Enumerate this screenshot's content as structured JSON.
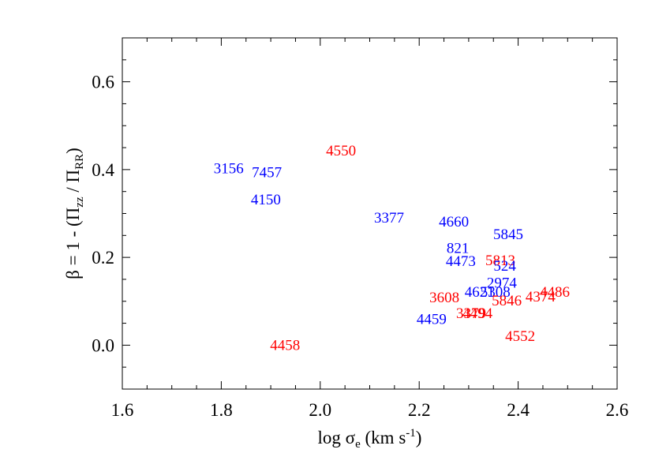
{
  "chart_data": {
    "type": "scatter",
    "xlabel": [
      "log σ",
      "e",
      " (km s",
      "-1",
      ")"
    ],
    "ylabel": [
      "β = 1 - (Π",
      "zz",
      " / Π",
      "RR",
      ")"
    ],
    "labels": [
      "3156",
      "7457",
      "4150",
      "4550",
      "3377",
      "4660",
      "5845",
      "821",
      "4473",
      "5813",
      "524",
      "2974",
      "4621",
      "5308",
      "3608",
      "4486",
      "4374",
      "5846",
      "3379",
      "4494",
      "4459",
      "4552",
      "4458"
    ],
    "x": [
      1.815,
      1.892,
      1.89,
      2.042,
      2.139,
      2.27,
      2.38,
      2.278,
      2.284,
      2.364,
      2.373,
      2.367,
      2.322,
      2.354,
      2.251,
      2.474,
      2.445,
      2.377,
      2.305,
      2.318,
      2.225,
      2.404,
      1.929
    ],
    "y": [
      0.404,
      0.395,
      0.333,
      0.445,
      0.292,
      0.283,
      0.254,
      0.223,
      0.193,
      0.195,
      0.182,
      0.144,
      0.123,
      0.123,
      0.11,
      0.123,
      0.112,
      0.103,
      0.074,
      0.074,
      0.061,
      0.022,
      0.002
    ],
    "colors": [
      "#0000ff",
      "#0000ff",
      "#0000ff",
      "#ff0000",
      "#0000ff",
      "#0000ff",
      "#0000ff",
      "#0000ff",
      "#0000ff",
      "#ff0000",
      "#0000ff",
      "#0000ff",
      "#0000ff",
      "#0000ff",
      "#ff0000",
      "#ff0000",
      "#ff0000",
      "#ff0000",
      "#ff0000",
      "#ff0000",
      "#0000ff",
      "#ff0000",
      "#ff0000"
    ],
    "xlim": [
      1.6,
      2.6
    ],
    "ylim": [
      -0.1,
      0.7
    ],
    "xticks": [
      1.6,
      1.8,
      {
        "value": 2,
        "label": "2.0"
      },
      2.2,
      2.4,
      2.6
    ],
    "yticks": [
      {
        "value": 0,
        "label": "0.0"
      },
      0.2,
      0.4,
      0.6
    ],
    "xminorticks": [
      1.65,
      1.7,
      1.75,
      1.85,
      1.9,
      1.95,
      2.05,
      2.1,
      2.15,
      2.25,
      2.3,
      2.35,
      2.45,
      2.5,
      2.55
    ],
    "yminorticks": [
      -0.05,
      0.05,
      0.1,
      0.15,
      0.25,
      0.3,
      0.35,
      0.45,
      0.5,
      0.55,
      0.65
    ]
  }
}
